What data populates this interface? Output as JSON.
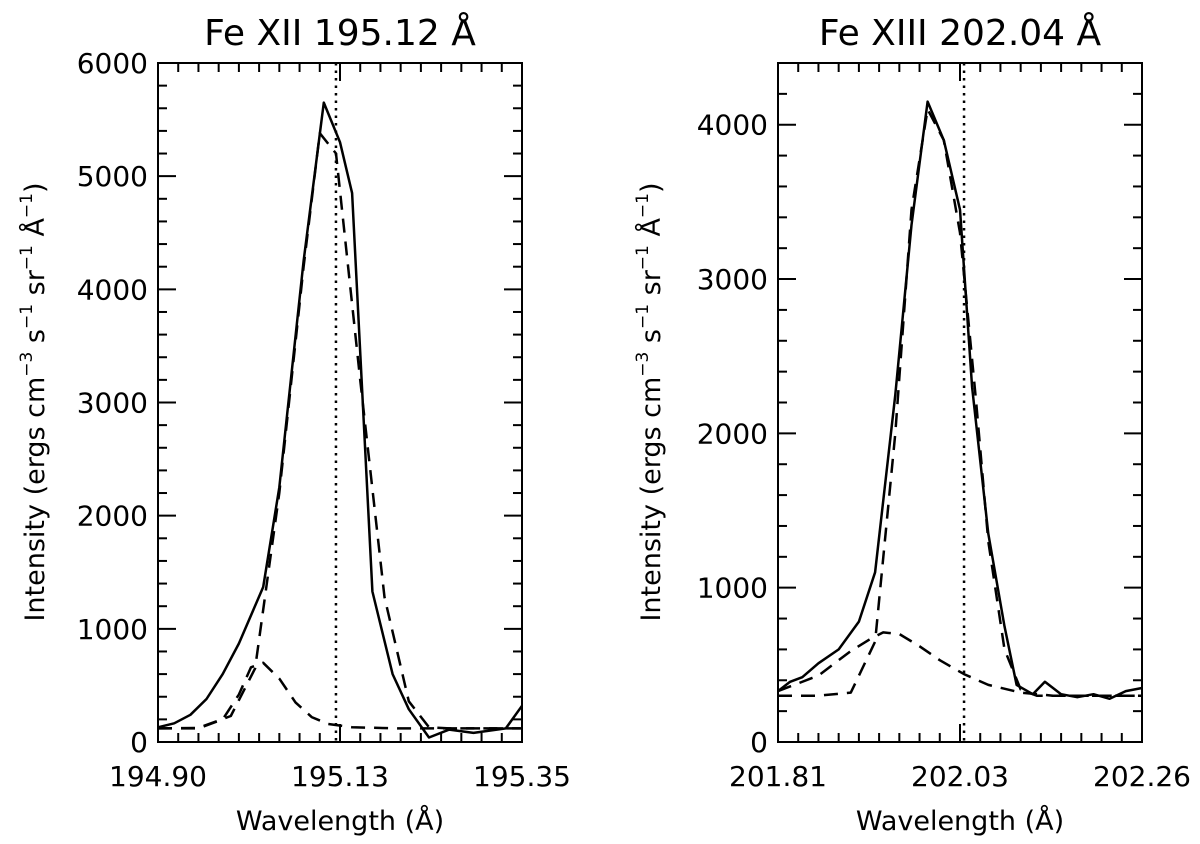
{
  "chart_data": [
    {
      "type": "line",
      "title": "Fe XII 195.12 Å",
      "xlabel": "Wavelength (Å)",
      "ylabel": {
        "main": "Intensity (ergs cm",
        "e1": "−3",
        "t1": " s",
        "e2": "−1",
        "t2": " sr",
        "e3": "−1",
        "t3": " Å",
        "e4": "−1",
        "t4": ")"
      },
      "xlim": [
        194.9,
        195.35
      ],
      "ylim": [
        0,
        6000
      ],
      "xticks": [
        "194.90",
        "195.13",
        "195.35"
      ],
      "xtick_values": [
        194.9,
        195.125,
        195.35
      ],
      "yticks": [
        "0",
        "1000",
        "2000",
        "3000",
        "4000",
        "5000",
        "6000"
      ],
      "ytick_values": [
        0,
        1000,
        2000,
        3000,
        4000,
        5000,
        6000
      ],
      "reference_line": 195.12,
      "series": [
        {
          "style": "solid",
          "x": [
            194.9,
            194.92,
            194.94,
            194.96,
            194.98,
            195.0,
            195.03,
            195.05,
            195.08,
            195.105,
            195.125,
            195.14,
            195.165,
            195.19,
            195.21,
            195.235,
            195.26,
            195.29,
            195.33,
            195.35
          ],
          "y": [
            130,
            165,
            240,
            380,
            600,
            870,
            1370,
            2250,
            4250,
            5650,
            5300,
            4850,
            1330,
            600,
            290,
            40,
            110,
            80,
            120,
            320
          ]
        },
        {
          "style": "dashed",
          "x": [
            194.9,
            194.95,
            194.99,
            195.02,
            195.05,
            195.08,
            195.1,
            195.12,
            195.15,
            195.18,
            195.21,
            195.235,
            195.26,
            195.35
          ],
          "y": [
            120,
            125,
            230,
            650,
            2200,
            4200,
            5380,
            5200,
            3200,
            1280,
            360,
            130,
            120,
            120
          ]
        },
        {
          "style": "dashed",
          "x": [
            194.9,
            194.95,
            194.98,
            195.0,
            195.015,
            195.03,
            195.05,
            195.07,
            195.09,
            195.11,
            195.14,
            195.2,
            195.35
          ],
          "y": [
            120,
            120,
            200,
            420,
            660,
            700,
            560,
            350,
            220,
            160,
            130,
            120,
            120
          ]
        }
      ]
    },
    {
      "type": "line",
      "title": "Fe XIII 202.04 Å",
      "xlabel": "Wavelength (Å)",
      "ylabel": {
        "main": "Intensity (ergs cm",
        "e1": "−3",
        "t1": " s",
        "e2": "−1",
        "t2": " sr",
        "e3": "−1",
        "t3": " Å",
        "e4": "−1",
        "t4": ")"
      },
      "xlim": [
        201.81,
        202.26
      ],
      "ylim": [
        0,
        4400
      ],
      "xticks": [
        "201.81",
        "202.03",
        "202.26"
      ],
      "xtick_values": [
        201.81,
        202.035,
        202.26
      ],
      "yticks": [
        "0",
        "1000",
        "2000",
        "3000",
        "4000"
      ],
      "ytick_values": [
        0,
        1000,
        2000,
        3000,
        4000
      ],
      "reference_line": 202.04,
      "series": [
        {
          "style": "solid",
          "x": [
            201.81,
            201.825,
            201.84,
            201.86,
            201.885,
            201.91,
            201.93,
            201.955,
            201.975,
            201.995,
            202.015,
            202.035,
            202.05,
            202.07,
            202.09,
            202.105,
            202.125,
            202.14,
            202.16,
            202.18,
            202.2,
            202.22,
            202.24,
            202.26
          ],
          "y": [
            330,
            390,
            420,
            510,
            600,
            780,
            1100,
            2250,
            3350,
            4150,
            3900,
            3450,
            2300,
            1350,
            750,
            370,
            310,
            390,
            310,
            290,
            310,
            280,
            330,
            350
          ]
        },
        {
          "style": "dashed",
          "x": [
            201.81,
            201.86,
            201.9,
            201.93,
            201.955,
            201.975,
            201.995,
            202.015,
            202.035,
            202.055,
            202.07,
            202.09,
            202.11,
            202.13,
            202.26
          ],
          "y": [
            300,
            300,
            320,
            650,
            2000,
            3450,
            4100,
            3900,
            3300,
            2200,
            1300,
            600,
            340,
            300,
            300
          ]
        },
        {
          "style": "dashed",
          "x": [
            201.81,
            201.86,
            201.9,
            201.925,
            201.94,
            201.96,
            201.985,
            202.01,
            202.04,
            202.07,
            202.11,
            202.15,
            202.26
          ],
          "y": [
            330,
            430,
            590,
            670,
            710,
            700,
            620,
            530,
            440,
            370,
            320,
            300,
            300
          ]
        }
      ]
    }
  ]
}
